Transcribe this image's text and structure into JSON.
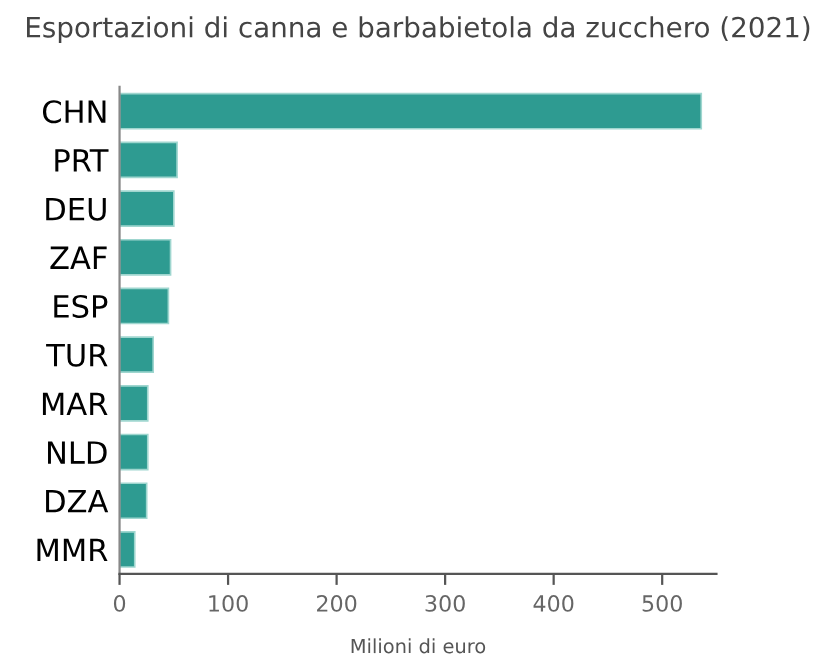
{
  "chart_data": {
    "type": "bar",
    "orientation": "horizontal",
    "title": "Esportazioni di canna e barbabietola da zucchero (2021)",
    "xlabel": "Milioni di euro",
    "categories": [
      "CHN",
      "PRT",
      "DEU",
      "ZAF",
      "ESP",
      "TUR",
      "MAR",
      "NLD",
      "DZA",
      "MMR"
    ],
    "values": [
      536,
      53,
      50,
      47,
      45,
      31,
      26,
      26,
      25,
      14
    ],
    "color": "#2e9b91",
    "xlim": [
      0,
      550
    ],
    "xticks": [
      0,
      100,
      200,
      300,
      400,
      500
    ],
    "grid": false,
    "legend": false
  }
}
